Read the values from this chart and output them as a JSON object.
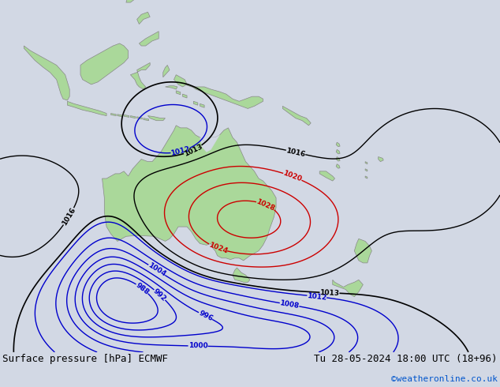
{
  "title_left": "Surface pressure [hPa] ECMWF",
  "title_right": "Tu 28-05-2024 18:00 UTC (18+96)",
  "copyright": "©weatheronline.co.uk",
  "bg_color": "#d2d8e4",
  "land_color": "#aad89a",
  "land_edge_color": "#888888",
  "isobar_blue": "#0000cc",
  "isobar_red": "#cc0000",
  "isobar_black": "#000000",
  "font_size_bottom": 9,
  "copyright_color": "#0055cc",
  "bottom_text_color": "#000000",
  "figsize": [
    6.34,
    4.9
  ],
  "dpi": 100,
  "lon_min": 90,
  "lon_max": 205,
  "lat_min": -58,
  "lat_max": 15
}
